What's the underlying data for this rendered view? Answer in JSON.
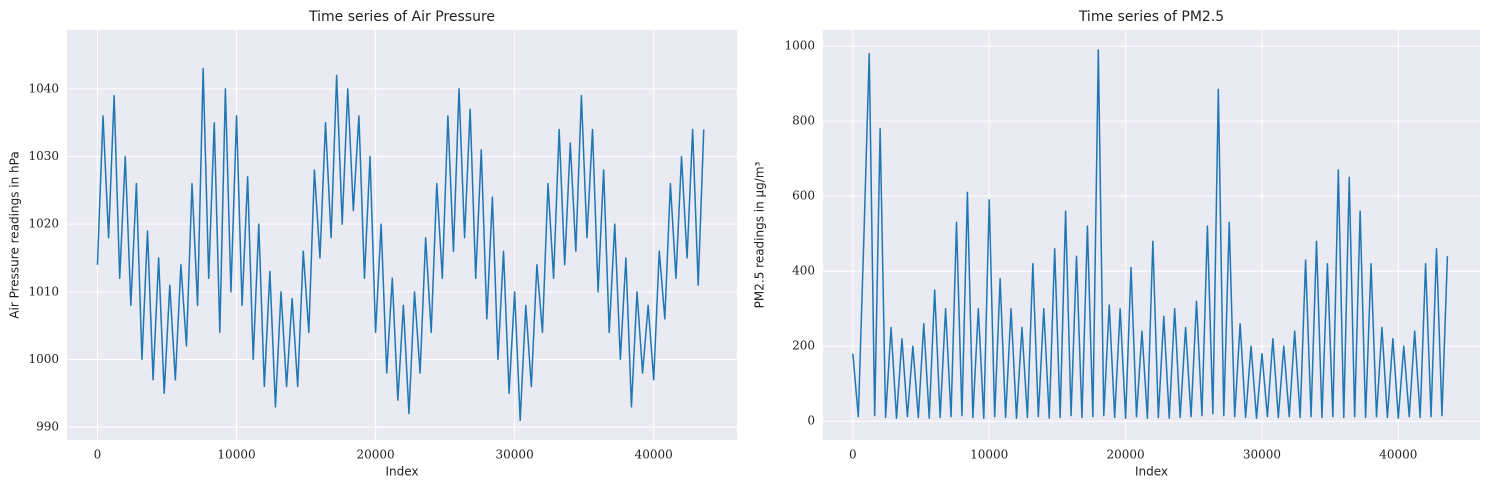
{
  "chart_data": [
    {
      "type": "line",
      "title": "Time series of Air Pressure",
      "x_label": "Index",
      "y_label": "Air Pressure readings in hPa",
      "color": "#1f77b4",
      "grid": true,
      "xlim": [
        -2190,
        45990
      ],
      "ylim": [
        988.1,
        1048.7
      ],
      "xticks": [
        0,
        10000,
        20000,
        30000,
        40000
      ],
      "yticks": [
        990,
        1000,
        1010,
        1020,
        1030,
        1040
      ],
      "x": [
        0,
        400,
        800,
        1200,
        1600,
        2000,
        2400,
        2800,
        3200,
        3600,
        4000,
        4400,
        4800,
        5200,
        5600,
        6000,
        6400,
        6800,
        7200,
        7600,
        8000,
        8400,
        8800,
        9200,
        9600,
        10000,
        10400,
        10800,
        11200,
        11600,
        12000,
        12400,
        12800,
        13200,
        13600,
        14000,
        14400,
        14800,
        15200,
        15600,
        16000,
        16400,
        16800,
        17200,
        17600,
        18000,
        18400,
        18800,
        19200,
        19600,
        20000,
        20400,
        20800,
        21200,
        21600,
        22000,
        22400,
        22800,
        23200,
        23600,
        24000,
        24400,
        24800,
        25200,
        25600,
        26000,
        26400,
        26800,
        27200,
        27600,
        28000,
        28400,
        28800,
        29200,
        29600,
        30000,
        30400,
        30800,
        31200,
        31600,
        32000,
        32400,
        32800,
        33200,
        33600,
        34000,
        34400,
        34800,
        35200,
        35600,
        36000,
        36400,
        36800,
        37200,
        37600,
        38000,
        38400,
        38800,
        39200,
        39600,
        40000,
        40400,
        40800,
        41200,
        41600,
        42000,
        42400,
        42800,
        43200,
        43600
      ],
      "values": [
        1014,
        1036,
        1018,
        1039,
        1012,
        1030,
        1008,
        1026,
        1000,
        1019,
        997,
        1015,
        995,
        1011,
        997,
        1014,
        1002,
        1026,
        1008,
        1043,
        1012,
        1035,
        1004,
        1040,
        1010,
        1036,
        1008,
        1027,
        1000,
        1020,
        996,
        1013,
        993,
        1010,
        996,
        1009,
        996,
        1016,
        1004,
        1028,
        1015,
        1035,
        1018,
        1042,
        1020,
        1040,
        1022,
        1036,
        1012,
        1030,
        1004,
        1020,
        998,
        1012,
        994,
        1008,
        992,
        1010,
        998,
        1018,
        1004,
        1026,
        1012,
        1036,
        1016,
        1040,
        1018,
        1037,
        1012,
        1031,
        1006,
        1024,
        1000,
        1016,
        995,
        1010,
        991,
        1008,
        996,
        1014,
        1004,
        1026,
        1012,
        1034,
        1014,
        1032,
        1016,
        1039,
        1018,
        1034,
        1010,
        1028,
        1004,
        1020,
        1000,
        1015,
        993,
        1010,
        998,
        1008,
        997,
        1016,
        1006,
        1026,
        1012,
        1030,
        1015,
        1034,
        1011,
        1034
      ]
    },
    {
      "type": "line",
      "title": "Time series of PM2.5",
      "x_label": "Index",
      "y_label": "PM2.5 readings in µg/m³",
      "color": "#1f77b4",
      "grid": true,
      "xlim": [
        -2190,
        45990
      ],
      "ylim": [
        -50,
        1043
      ],
      "xticks": [
        0,
        10000,
        20000,
        30000,
        40000
      ],
      "yticks": [
        0,
        200,
        400,
        600,
        800,
        1000
      ],
      "x": [
        0,
        400,
        800,
        1200,
        1600,
        2000,
        2400,
        2800,
        3200,
        3600,
        4000,
        4400,
        4800,
        5200,
        5600,
        6000,
        6400,
        6800,
        7200,
        7600,
        8000,
        8400,
        8800,
        9200,
        9600,
        10000,
        10400,
        10800,
        11200,
        11600,
        12000,
        12400,
        12800,
        13200,
        13600,
        14000,
        14400,
        14800,
        15200,
        15600,
        16000,
        16400,
        16800,
        17200,
        17600,
        18000,
        18400,
        18800,
        19200,
        19600,
        20000,
        20400,
        20800,
        21200,
        21600,
        22000,
        22400,
        22800,
        23200,
        23600,
        24000,
        24400,
        24800,
        25200,
        25600,
        26000,
        26400,
        26800,
        27200,
        27600,
        28000,
        28400,
        28800,
        29200,
        29600,
        30000,
        30400,
        30800,
        31200,
        31600,
        32000,
        32400,
        32800,
        33200,
        33600,
        34000,
        34400,
        34800,
        35200,
        35600,
        36000,
        36400,
        36800,
        37200,
        37600,
        38000,
        38400,
        38800,
        39200,
        39600,
        40000,
        40400,
        40800,
        41200,
        41600,
        42000,
        42400,
        42800,
        43200,
        43600
      ],
      "values": [
        180,
        12,
        480,
        980,
        15,
        780,
        10,
        250,
        8,
        220,
        12,
        200,
        10,
        260,
        8,
        350,
        10,
        300,
        12,
        530,
        15,
        610,
        10,
        300,
        8,
        590,
        12,
        380,
        10,
        300,
        8,
        250,
        10,
        420,
        12,
        300,
        8,
        460,
        10,
        560,
        15,
        440,
        10,
        520,
        12,
        990,
        15,
        310,
        10,
        300,
        8,
        410,
        12,
        240,
        8,
        480,
        10,
        280,
        8,
        300,
        10,
        250,
        12,
        320,
        15,
        520,
        20,
        885,
        15,
        530,
        12,
        260,
        10,
        200,
        8,
        180,
        12,
        220,
        10,
        200,
        12,
        240,
        10,
        430,
        12,
        480,
        10,
        420,
        12,
        670,
        10,
        650,
        12,
        560,
        10,
        420,
        12,
        250,
        10,
        220,
        8,
        200,
        12,
        240,
        10,
        420,
        12,
        460,
        15,
        440
      ]
    }
  ]
}
